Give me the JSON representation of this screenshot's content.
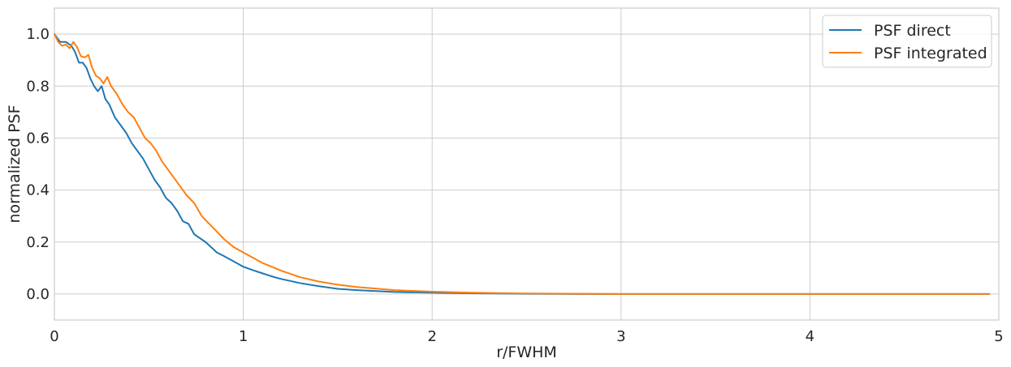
{
  "chart_data": {
    "type": "line",
    "title": "",
    "xlabel": "r/FWHM",
    "ylabel": "normalized PSF",
    "xlim": [
      0,
      5
    ],
    "ylim": [
      -0.1,
      1.1
    ],
    "xticks": [
      0,
      1,
      2,
      3,
      4,
      5
    ],
    "xtick_labels": [
      "0",
      "1",
      "2",
      "3",
      "4",
      "5"
    ],
    "yticks": [
      0.0,
      0.2,
      0.4,
      0.6,
      0.8,
      1.0
    ],
    "ytick_labels": [
      "0.0",
      "0.2",
      "0.4",
      "0.6",
      "0.8",
      "1.0"
    ],
    "grid": true,
    "legend": "top-right",
    "series": [
      {
        "name": "PSF direct",
        "color": "#1f77b4",
        "x": [
          0.0,
          0.03,
          0.06,
          0.09,
          0.11,
          0.13,
          0.15,
          0.17,
          0.19,
          0.21,
          0.23,
          0.25,
          0.27,
          0.29,
          0.32,
          0.35,
          0.38,
          0.41,
          0.44,
          0.47,
          0.5,
          0.53,
          0.56,
          0.59,
          0.62,
          0.65,
          0.68,
          0.71,
          0.74,
          0.77,
          0.8,
          0.83,
          0.86,
          0.9,
          0.95,
          1.0,
          1.05,
          1.1,
          1.15,
          1.2,
          1.3,
          1.4,
          1.5,
          1.6,
          1.8,
          2.0,
          2.2,
          2.5,
          2.8,
          3.0,
          3.5,
          4.0,
          4.5,
          4.95
        ],
        "y": [
          1.0,
          0.97,
          0.97,
          0.955,
          0.93,
          0.89,
          0.89,
          0.87,
          0.83,
          0.8,
          0.78,
          0.8,
          0.75,
          0.73,
          0.68,
          0.65,
          0.62,
          0.58,
          0.55,
          0.52,
          0.48,
          0.44,
          0.41,
          0.37,
          0.35,
          0.32,
          0.28,
          0.27,
          0.23,
          0.215,
          0.2,
          0.18,
          0.16,
          0.145,
          0.125,
          0.105,
          0.092,
          0.08,
          0.068,
          0.058,
          0.042,
          0.03,
          0.02,
          0.015,
          0.008,
          0.005,
          0.003,
          0.001,
          0.0,
          0.0,
          0.0,
          0.0,
          0.0,
          0.0
        ]
      },
      {
        "name": "PSF integrated",
        "color": "#ff7f0e",
        "x": [
          0.0,
          0.02,
          0.04,
          0.06,
          0.08,
          0.1,
          0.12,
          0.14,
          0.16,
          0.18,
          0.2,
          0.22,
          0.24,
          0.26,
          0.28,
          0.3,
          0.33,
          0.36,
          0.39,
          0.42,
          0.45,
          0.48,
          0.51,
          0.54,
          0.57,
          0.6,
          0.63,
          0.66,
          0.7,
          0.74,
          0.78,
          0.82,
          0.86,
          0.9,
          0.95,
          1.0,
          1.05,
          1.1,
          1.15,
          1.2,
          1.3,
          1.4,
          1.5,
          1.6,
          1.8,
          2.0,
          2.2,
          2.5,
          2.8,
          3.0,
          3.5,
          4.0,
          4.5,
          4.95
        ],
        "y": [
          1.0,
          0.97,
          0.955,
          0.96,
          0.945,
          0.97,
          0.95,
          0.915,
          0.91,
          0.92,
          0.87,
          0.84,
          0.83,
          0.81,
          0.835,
          0.8,
          0.77,
          0.73,
          0.7,
          0.68,
          0.64,
          0.6,
          0.58,
          0.55,
          0.51,
          0.48,
          0.45,
          0.42,
          0.38,
          0.35,
          0.3,
          0.27,
          0.24,
          0.21,
          0.18,
          0.16,
          0.14,
          0.12,
          0.105,
          0.09,
          0.065,
          0.048,
          0.036,
          0.027,
          0.015,
          0.009,
          0.005,
          0.002,
          0.001,
          0.0,
          0.0,
          0.0,
          0.0,
          0.0
        ]
      }
    ]
  }
}
